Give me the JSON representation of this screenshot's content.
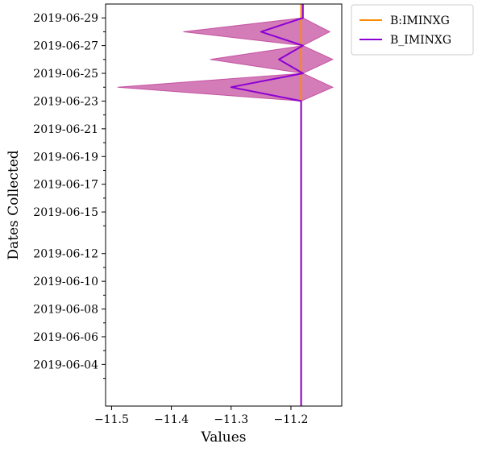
{
  "chart_data": {
    "type": "line",
    "orientation": "horizontal",
    "xlabel": "Values",
    "ylabel": "Dates Collected",
    "xlim": [
      -11.51,
      -11.115
    ],
    "ylim": [
      "2019-06-01",
      "2019-06-30"
    ],
    "x_ticks": [
      "−11.5",
      "−11.4",
      "−11.3",
      "−11.2"
    ],
    "x_tick_values": [
      -11.5,
      -11.4,
      -11.3,
      -11.2
    ],
    "y_ticks": [
      "2019-06-04",
      "2019-06-06",
      "2019-06-08",
      "2019-06-10",
      "2019-06-12",
      "2019-06-15",
      "2019-06-17",
      "2019-06-19",
      "2019-06-21",
      "2019-06-23",
      "2019-06-25",
      "2019-06-27",
      "2019-06-29"
    ],
    "y_tick_dates": [
      "2019-06-04",
      "2019-06-06",
      "2019-06-08",
      "2019-06-10",
      "2019-06-12",
      "2019-06-15",
      "2019-06-17",
      "2019-06-19",
      "2019-06-21",
      "2019-06-23",
      "2019-06-25",
      "2019-06-27",
      "2019-06-29"
    ],
    "y_minor_dates": [
      "2019-06-03",
      "2019-06-05",
      "2019-06-07",
      "2019-06-09",
      "2019-06-11",
      "2019-06-14",
      "2019-06-16",
      "2019-06-18",
      "2019-06-20",
      "2019-06-22",
      "2019-06-24",
      "2019-06-26",
      "2019-06-28"
    ],
    "legend_position": "outside-top-right",
    "series": [
      {
        "name": "B:IMINXG",
        "color": "#ff8c00",
        "points": [
          {
            "date": "2019-06-01",
            "value": -11.183
          },
          {
            "date": "2019-06-30",
            "value": -11.183
          }
        ]
      },
      {
        "name": "B_IMINXG",
        "color": "#8c00d4",
        "points": [
          {
            "date": "2019-06-01",
            "value": -11.183
          },
          {
            "date": "2019-06-23",
            "value": -11.183
          },
          {
            "date": "2019-06-24",
            "value": -11.3
          },
          {
            "date": "2019-06-25",
            "value": -11.18
          },
          {
            "date": "2019-06-26",
            "value": -11.22
          },
          {
            "date": "2019-06-27",
            "value": -11.18
          },
          {
            "date": "2019-06-28",
            "value": -11.25
          },
          {
            "date": "2019-06-29",
            "value": -11.18
          },
          {
            "date": "2019-06-30",
            "value": -11.18
          }
        ]
      }
    ],
    "band": {
      "color": "#c0449a",
      "opacity": 0.7,
      "points": [
        {
          "date": "2019-06-23",
          "low": -11.183,
          "high": -11.183
        },
        {
          "date": "2019-06-24",
          "low": -11.49,
          "high": -11.13
        },
        {
          "date": "2019-06-25",
          "low": -11.18,
          "high": -11.18
        },
        {
          "date": "2019-06-26",
          "low": -11.335,
          "high": -11.13
        },
        {
          "date": "2019-06-27",
          "low": -11.18,
          "high": -11.18
        },
        {
          "date": "2019-06-28",
          "low": -11.38,
          "high": -11.135
        },
        {
          "date": "2019-06-29",
          "low": -11.18,
          "high": -11.18
        }
      ]
    }
  }
}
